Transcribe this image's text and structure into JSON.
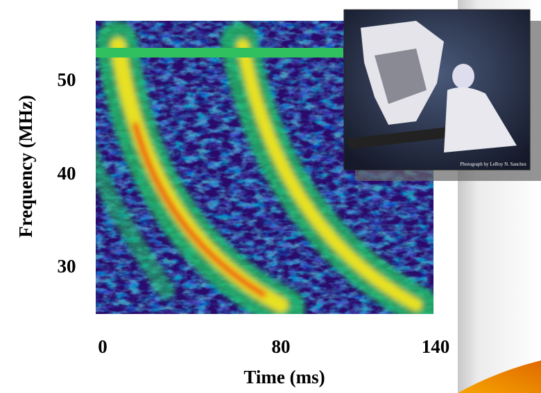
{
  "figure": {
    "y_label": "Frequency  (MHz)",
    "y_ticks": [
      "50",
      "40",
      "30"
    ],
    "x_label": "Time (ms)",
    "x_ticks": [
      "0",
      "80",
      "140"
    ]
  },
  "photo": {
    "credit": "Photograph by LeRoy N. Sanchez"
  }
}
